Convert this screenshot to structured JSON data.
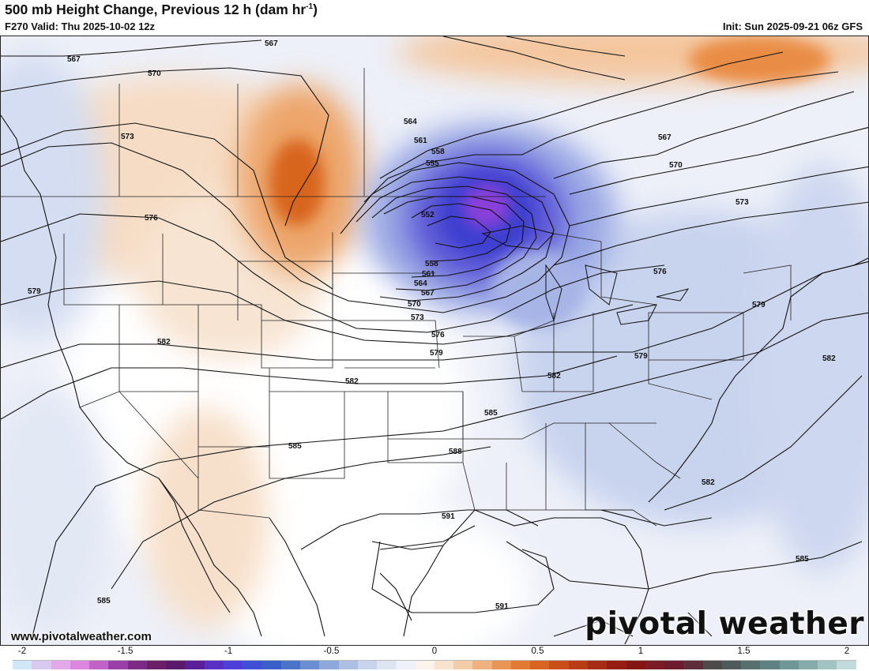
{
  "header": {
    "title_main": "500 mb Height Change, Previous 12 h (dam hr",
    "title_sup": "-1",
    "title_end": ")",
    "valid": "F270 Valid: Thu 2025-10-02 12z",
    "init": "Init: Sun 2025-09-21 06z GFS"
  },
  "footer": {
    "website": "www.pivotalweather.com",
    "logo": "pivotal weather"
  },
  "colorbar": {
    "tick_labels": [
      "-2",
      "-1.5",
      "-1",
      "-0.5",
      "0",
      "0.5",
      "1",
      "1.5",
      "2"
    ],
    "colors": [
      "#cfe7f6",
      "#d9c8ef",
      "#e3a8e9",
      "#dc86e0",
      "#c062c7",
      "#9a3fa8",
      "#7d2a86",
      "#6a1f66",
      "#5a1a6b",
      "#5b1f99",
      "#5a2fc6",
      "#4d3fd8",
      "#3f4fd6",
      "#3a5fc9",
      "#4a74c8",
      "#6b8ed2",
      "#8ea8da",
      "#adc0e3",
      "#c8d4ec",
      "#dde5f3",
      "#eef1f8",
      "#fbf3ec",
      "#f8e3cf",
      "#f3cda8",
      "#efb27f",
      "#ea9556",
      "#e27a33",
      "#d76421",
      "#c94e19",
      "#b93c17",
      "#a72c15",
      "#951d13",
      "#841611",
      "#7a1b25",
      "#6d1c2f",
      "#5e2e3a",
      "#4d4a4a",
      "#4f5b5b",
      "#567070",
      "#5e8282",
      "#6f9797",
      "#86abab",
      "#a3c3c3",
      "#c2dada"
    ]
  },
  "map": {
    "contour_labels": [
      "567",
      "567",
      "570",
      "573",
      "576",
      "579",
      "582",
      "582",
      "585",
      "585",
      "588",
      "591",
      "591",
      "585",
      "582",
      "582",
      "579",
      "579",
      "576",
      "573",
      "570",
      "567",
      "564",
      "561",
      "558",
      "555",
      "552",
      "558",
      "561",
      "564",
      "567",
      "570",
      "573",
      "576",
      "579",
      "582",
      "585"
    ],
    "colors": {
      "rise": "#e8a066",
      "rise_strong": "#d2651f",
      "fall_light": "#c9d5ee",
      "fall_mid": "#8d9ee0",
      "fall_strong": "#4a3fd0",
      "fall_core": "#8a3fd8"
    }
  }
}
